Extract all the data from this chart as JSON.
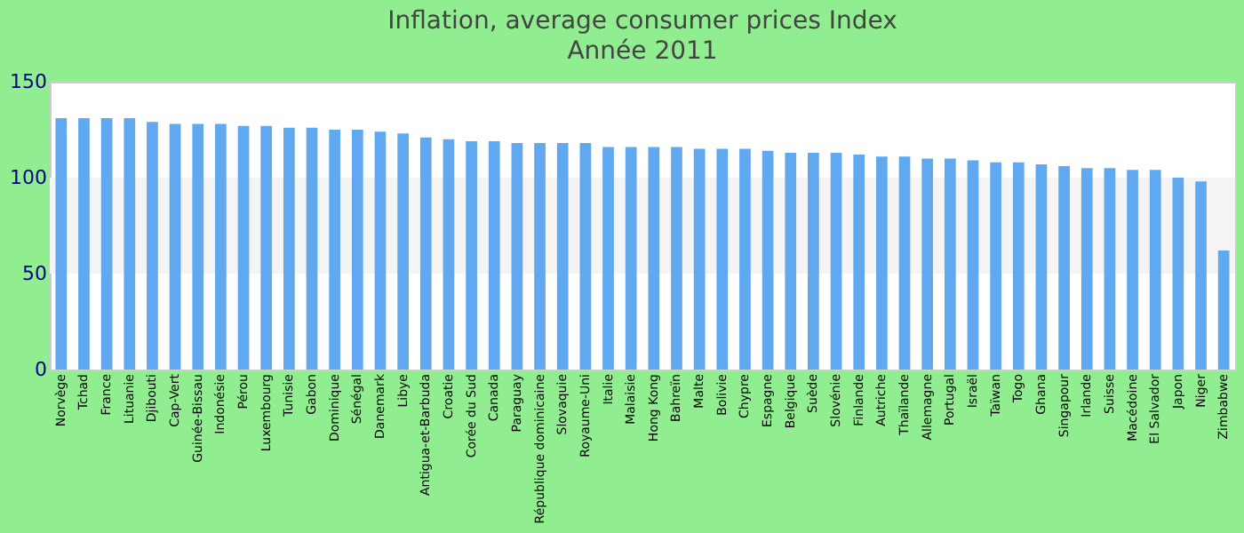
{
  "chart_data": {
    "type": "bar",
    "title": "Inflation, average consumer prices  Index",
    "subtitle": "Année 2011",
    "categories": [
      "Norvège",
      "Tchad",
      "France",
      "Lituanie",
      "Djibouti",
      "Cap-Vert",
      "Guinée-Bissau",
      "Indonésie",
      "Pérou",
      "Luxembourg",
      "Tunisie",
      "Gabon",
      "Dominique",
      "Sénégal",
      "Danemark",
      "Libye",
      "Antigua-et-Barbuda",
      "Croatie",
      "Corée du Sud",
      "Canada",
      "Paraguay",
      "République dominicaine",
      "Slovaquie",
      "Royaume-Uni",
      "Italie",
      "Malaisie",
      "Hong Kong",
      "Bahreïn",
      "Malte",
      "Bolivie",
      "Chypre",
      "Espagne",
      "Belgique",
      "Suède",
      "Slovénie",
      "Finlande",
      "Autriche",
      "Thaïlande",
      "Allemagne",
      "Portugal",
      "Israël",
      "Taïwan",
      "Togo",
      "Ghana",
      "Singapour",
      "Irlande",
      "Suisse",
      "Macédoine",
      "El Salvador",
      "Japon",
      "Niger",
      "Zimbabwe"
    ],
    "values": [
      131,
      131,
      131,
      131,
      129,
      128,
      128,
      128,
      127,
      127,
      126,
      126,
      125,
      125,
      124,
      123,
      121,
      120,
      119,
      119,
      118,
      118,
      118,
      118,
      116,
      116,
      116,
      116,
      115,
      115,
      115,
      114,
      113,
      113,
      113,
      112,
      111,
      111,
      110,
      110,
      109,
      108,
      108,
      107,
      106,
      105,
      105,
      104,
      104,
      100,
      98,
      62
    ],
    "color": "#60a8f0",
    "ylim": [
      0,
      150
    ],
    "yticks": [
      0,
      50,
      100,
      150
    ],
    "bands": [
      {
        "axis": "y",
        "from": 50,
        "to": 100,
        "color": "#f4f4f4"
      }
    ]
  }
}
